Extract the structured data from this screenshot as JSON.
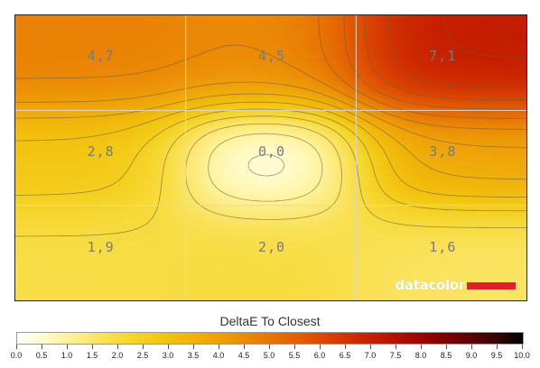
{
  "chart_data": {
    "type": "heatmap",
    "title": "DeltaE To Closest",
    "grid": true,
    "rows": 3,
    "cols": 3,
    "cells": [
      [
        "4,7",
        "4,5",
        "7,1"
      ],
      [
        "2,8",
        "0,0",
        "3,8"
      ],
      [
        "1,9",
        "2,0",
        "1,6"
      ]
    ],
    "values": [
      [
        4.7,
        4.5,
        7.1
      ],
      [
        2.8,
        0.0,
        3.8
      ],
      [
        1.9,
        2.0,
        1.6
      ]
    ],
    "colorbar": {
      "min": 0,
      "max": 10,
      "ticks": [
        "0.0",
        "0.5",
        "1.0",
        "1.5",
        "2.0",
        "2.5",
        "3.0",
        "3.5",
        "4.0",
        "4.5",
        "5.0",
        "5.5",
        "6.0",
        "6.5",
        "7.0",
        "7.5",
        "8.0",
        "8.5",
        "9.0",
        "9.5",
        "10.0"
      ],
      "colors": [
        "#ffffff",
        "#fffbcc",
        "#fff29a",
        "#fbe66b",
        "#f7db3e",
        "#f4cf1f",
        "#f2c10d",
        "#f0b10a",
        "#ee9f08",
        "#eb8a06",
        "#e87404",
        "#e35f03",
        "#dc4902",
        "#d33301",
        "#c61f00",
        "#b30f00",
        "#9a0500",
        "#7c0200",
        "#5a0100",
        "#360000",
        "#000000"
      ]
    }
  },
  "watermark": {
    "text": "datacolor",
    "bar_color": "#e0202a"
  }
}
